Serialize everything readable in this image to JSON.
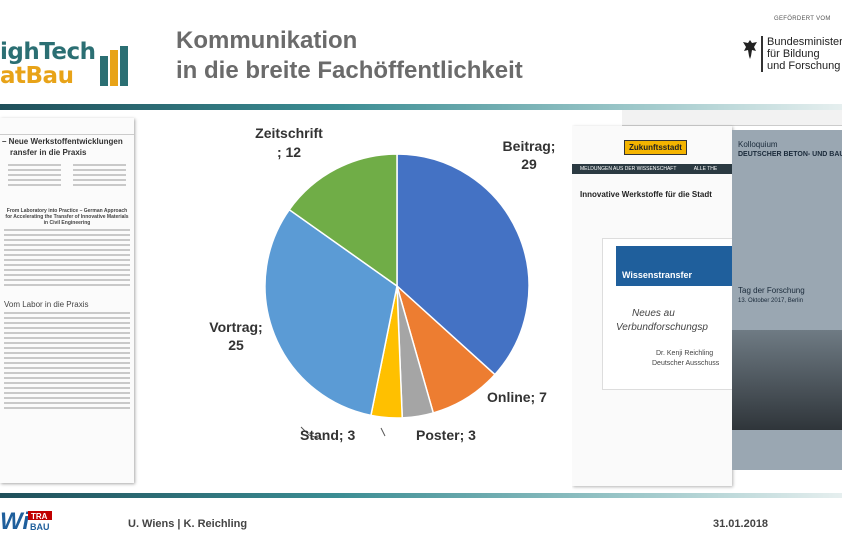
{
  "header": {
    "logo_line1": "ighTech",
    "logo_line2": "atBau",
    "title_line1": "Kommunikation",
    "title_line2": "in die breite Fachöffentlichkeit",
    "funder_caption": "GEFÖRDERT VOM",
    "funder_name_line1": "Bundesministeri",
    "funder_name_line2": "für Bildung",
    "funder_name_line3": "und Forschung"
  },
  "left_document": {
    "heading": "– Neue Werkstoffentwicklungen",
    "heading2": "ransfer in die Praxis",
    "english_title": "From Laboratory into Practice – German Approach for Accelerating the Transfer of Innovative Materials in Civil Engineering",
    "subheading": "Vom Labor in die Praxis"
  },
  "right_document": {
    "badge": "Zukunftsstadt",
    "menu1": "MELDUNGEN AUS DER WISSENSCHAFT",
    "menu2": "ALLE THE",
    "article_title": "Innovative Werkstoffe für die Stadt",
    "logo_text": "Wissenstransfer",
    "colloquium_line1": "Kolloquium",
    "colloquium_line2": "DEUTSCHER BETON- UND BAUTECHN",
    "tag_line1": "Tag der Forschung",
    "tag_line2": "13. Oktober 2017, Berlin",
    "neues": "Neues au",
    "verbund": "Verbundforschungsp",
    "author": "Dr. Kenji Reichling",
    "committee": "Deutscher Ausschuss"
  },
  "chart_data": {
    "type": "pie",
    "slices": [
      {
        "label": "Beitrag",
        "value": 29,
        "color": "#4472c4"
      },
      {
        "label": "Online",
        "value": 7,
        "color": "#ed7d31"
      },
      {
        "label": "Poster",
        "value": 3,
        "color": "#a5a5a5"
      },
      {
        "label": "Stand",
        "value": 3,
        "color": "#ffc000"
      },
      {
        "label": "Vortrag",
        "value": 25,
        "color": "#5b9bd5"
      },
      {
        "label": "Zeitschrift",
        "value": 12,
        "color": "#70ad47"
      }
    ],
    "start": "12 o'clock",
    "direction": "clockwise",
    "labels": {
      "beitrag_a": "Beitrag;",
      "beitrag_b": "29",
      "online": "Online; 7",
      "poster": "Poster; 3",
      "stand": "Stand; 3",
      "vortrag_a": "Vortrag;",
      "vortrag_b": "25",
      "zeitschrift_a": "Zeitschrift",
      "zeitschrift_b": "; 12"
    }
  },
  "footer": {
    "logo_w": "Wi",
    "logo_tra": "TRA",
    "logo_bau": "BAU",
    "names": "U. Wiens | K. Reichling",
    "date": "31.01.2018"
  }
}
